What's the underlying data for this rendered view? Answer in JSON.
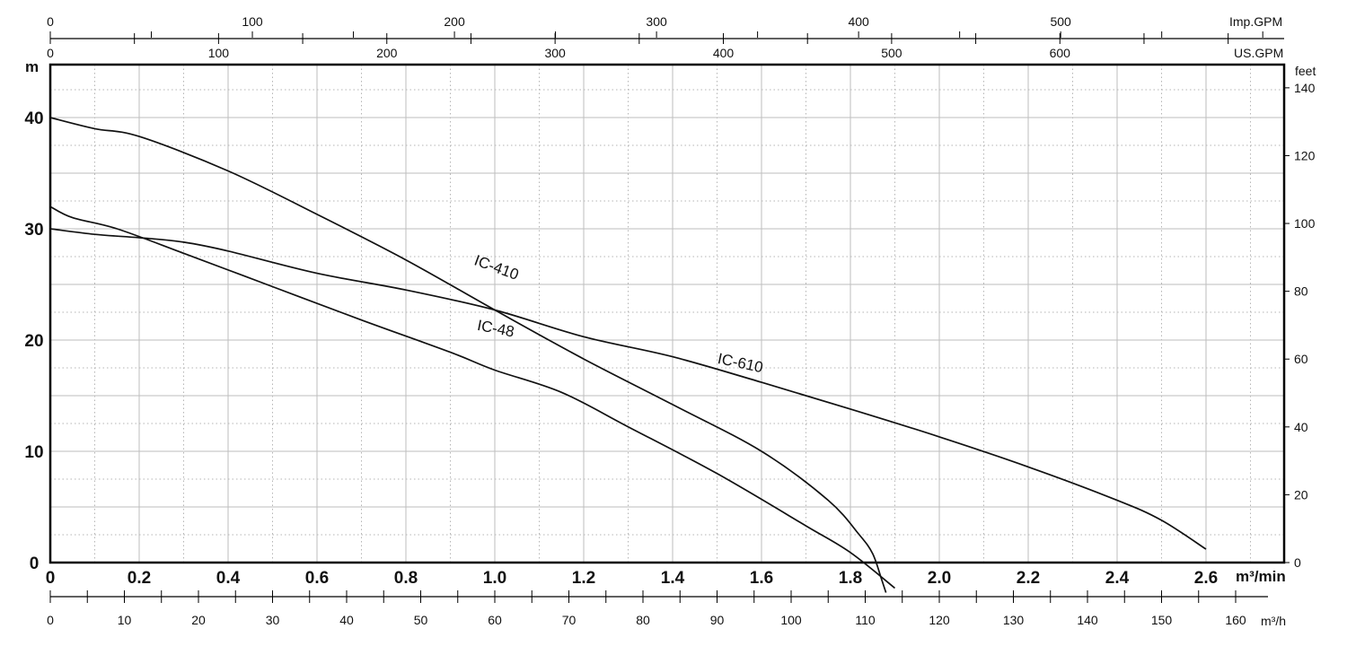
{
  "chart_data": {
    "type": "line",
    "title": "",
    "xlabel": "m³/min",
    "ylabel": "m",
    "xlim": [
      0,
      2.8
    ],
    "ylim": [
      0,
      45
    ],
    "x_ticks": [
      "0",
      "0.2",
      "0.4",
      "0.6",
      "0.8",
      "1.0",
      "1.2",
      "1.4",
      "1.6",
      "1.8",
      "2.0",
      "2.2",
      "2.4",
      "2.6"
    ],
    "y_ticks": [
      "0",
      "10",
      "20",
      "30",
      "40"
    ],
    "secondary_axes": {
      "feet": {
        "label": "feet",
        "ticks": [
          "0",
          "20",
          "40",
          "60",
          "80",
          "100",
          "120",
          "140"
        ]
      },
      "m3h": {
        "label": "m³/h",
        "ticks": [
          "0",
          "10",
          "20",
          "30",
          "40",
          "50",
          "60",
          "70",
          "80",
          "90",
          "100",
          "110",
          "120",
          "130",
          "140",
          "150",
          "160"
        ]
      },
      "us_gpm": {
        "label": "US.GPM",
        "ticks": [
          "0",
          "100",
          "200",
          "300",
          "400",
          "500",
          "600"
        ]
      },
      "imp_gpm": {
        "label": "Imp.GPM",
        "ticks": [
          "0",
          "100",
          "200",
          "300",
          "400",
          "500"
        ]
      }
    },
    "grid": true,
    "series": [
      {
        "name": "IC-410",
        "x": [
          0,
          0.1,
          0.2,
          0.4,
          0.6,
          0.8,
          1.0,
          1.2,
          1.4,
          1.6,
          1.75,
          1.82,
          1.85,
          1.87,
          1.88
        ],
        "y": [
          40,
          39,
          38.3,
          35.2,
          31.3,
          27.2,
          22.7,
          18.3,
          14.2,
          10,
          5.6,
          2.5,
          0.8,
          -1.5,
          -2.7
        ]
      },
      {
        "name": "IC-48",
        "x": [
          0,
          0.05,
          0.15,
          0.3,
          0.5,
          0.7,
          0.9,
          1.0,
          1.15,
          1.3,
          1.5,
          1.7,
          1.8,
          1.9
        ],
        "y": [
          32,
          31,
          30,
          27.8,
          24.8,
          21.8,
          18.9,
          17.3,
          15.3,
          12.2,
          8,
          3.3,
          0.9,
          -2.3
        ]
      },
      {
        "name": "IC-610",
        "x": [
          0,
          0.1,
          0.2,
          0.3,
          0.4,
          0.6,
          0.8,
          1.0,
          1.2,
          1.4,
          1.6,
          1.8,
          2.0,
          2.2,
          2.4,
          2.5,
          2.6
        ],
        "y": [
          30,
          29.5,
          29.2,
          28.8,
          28,
          26,
          24.5,
          22.7,
          20.3,
          18.5,
          16.2,
          13.8,
          11.3,
          8.6,
          5.6,
          3.8,
          1.2
        ]
      }
    ]
  }
}
